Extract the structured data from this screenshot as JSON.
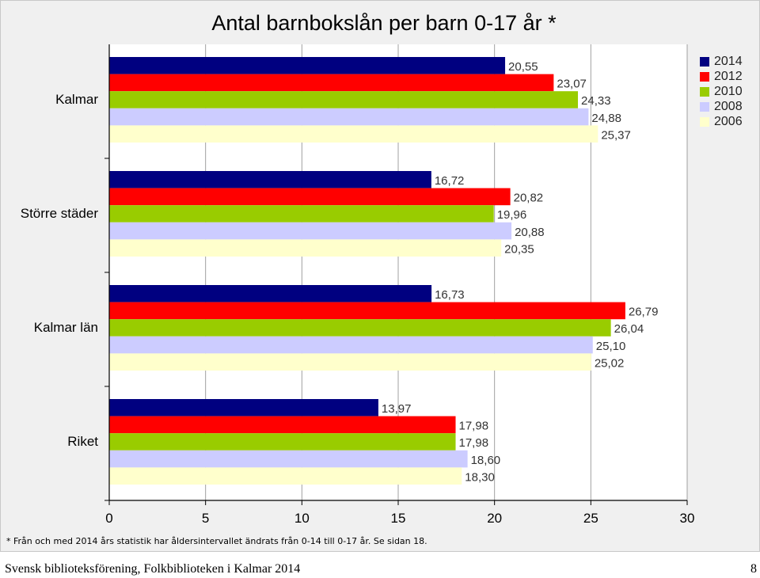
{
  "chart_data": {
    "type": "bar",
    "orientation": "horizontal",
    "title": "Antal barnbokslån per barn 0-17 år *",
    "categories": [
      "Kalmar",
      "Större städer",
      "Kalmar län",
      "Riket"
    ],
    "series": [
      {
        "name": "2014",
        "color": "#000080",
        "values": [
          20.55,
          16.72,
          16.73,
          13.97
        ],
        "labels": [
          "20,55",
          "16,72",
          "16,73",
          "13,97"
        ]
      },
      {
        "name": "2012",
        "color": "#ff0000",
        "values": [
          23.07,
          20.82,
          26.79,
          17.98
        ],
        "labels": [
          "23,07",
          "20,82",
          "26,79",
          "17,98"
        ]
      },
      {
        "name": "2010",
        "color": "#99cc00",
        "values": [
          24.33,
          19.96,
          26.04,
          17.98
        ],
        "labels": [
          "24,33",
          "19,96",
          "26,04",
          "17,98"
        ]
      },
      {
        "name": "2008",
        "color": "#ccccff",
        "values": [
          24.88,
          20.88,
          25.1,
          18.6
        ],
        "labels": [
          "24,88",
          "20,88",
          "25,10",
          "18,60"
        ]
      },
      {
        "name": "2006",
        "color": "#ffffcc",
        "values": [
          25.37,
          20.35,
          25.02,
          18.3
        ],
        "labels": [
          "25,37",
          "20,35",
          "25,02",
          "18,30"
        ]
      }
    ],
    "xlim": [
      0,
      30
    ],
    "xticks": [
      "0",
      "5",
      "10",
      "15",
      "20",
      "25",
      "30"
    ],
    "gridlines": true,
    "legend": "top-right"
  },
  "footnote": "* Från och med 2014 års statistik har åldersintervallet ändrats från 0-14 till 0-17 år. Se sidan 18.",
  "footer": {
    "left": "Svensk biblioteksförening, Folkbiblioteken i Kalmar 2014",
    "page": "8"
  }
}
